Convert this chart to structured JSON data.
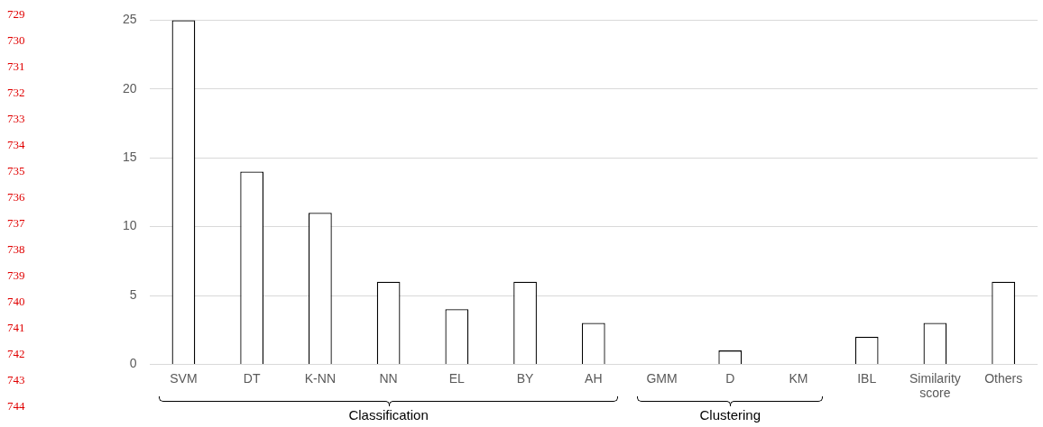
{
  "chart_data": {
    "type": "bar",
    "categories": [
      "SVM",
      "DT",
      "K-NN",
      "NN",
      "EL",
      "BY",
      "AH",
      "GMM",
      "D",
      "KM",
      "IBL",
      "Similarity score",
      "Others"
    ],
    "values": [
      25,
      14,
      11,
      6,
      4,
      6,
      3,
      0,
      1,
      0,
      2,
      3,
      6
    ],
    "color": "#ffffff",
    "ylim": [
      0,
      25
    ],
    "yticks": [
      0,
      5,
      10,
      15,
      20,
      25
    ],
    "grid": "y",
    "legend": false,
    "annotations": [
      "Classification",
      "Clustering",
      "729",
      "730",
      "731",
      "732",
      "733",
      "734",
      "735",
      "736",
      "737",
      "738",
      "739",
      "740",
      "741",
      "742",
      "743",
      "744"
    ]
  }
}
